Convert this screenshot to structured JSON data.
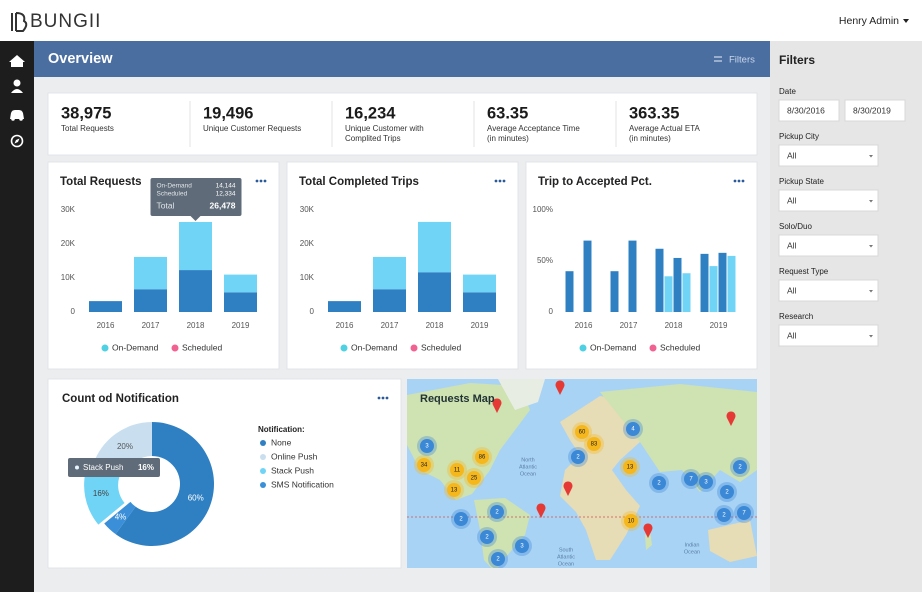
{
  "header": {
    "logo": "BUNGII",
    "user": "Henry Admin"
  },
  "banner": {
    "title": "Overview",
    "filters_button": "Filters"
  },
  "kpis": [
    {
      "value": "38,975",
      "label": [
        "Total Requests"
      ]
    },
    {
      "value": "19,496",
      "label": [
        "Unique Customer Requests"
      ]
    },
    {
      "value": "16,234",
      "label": [
        "Unique Customer with",
        "Complited Trips"
      ]
    },
    {
      "value": "63.35",
      "label": [
        "Average Acceptance Time",
        "(in minutes)"
      ]
    },
    {
      "value": "363.35",
      "label": [
        "Average Actual ETA",
        "(in minutes)"
      ]
    }
  ],
  "chart_data": [
    {
      "type": "bar",
      "stacked": true,
      "title": "Total Requests",
      "categories": [
        "2016",
        "2017",
        "2018",
        "2019"
      ],
      "series": [
        {
          "name": "On-Demand",
          "color": "#6fd4f6",
          "legend_color": "#4fd1e3",
          "values": [
            0,
            9500,
            14144,
            5200
          ]
        },
        {
          "name": "Scheduled",
          "color": "#2f80c3",
          "legend_color": "#f06292",
          "values": [
            3200,
            6700,
            12334,
            5800
          ]
        }
      ],
      "ylim": [
        0,
        30000
      ],
      "yticks": [
        0,
        {
          "value": 10000,
          "label": "10K"
        },
        {
          "value": 20000,
          "label": "20K"
        },
        {
          "value": 30000,
          "label": "30K"
        }
      ],
      "tooltip": {
        "rows": [
          {
            "label": "On-Demand",
            "value": "14,144"
          },
          {
            "label": "Scheduled",
            "value": "12,334"
          },
          {
            "label": "Total",
            "value": "26,478"
          }
        ]
      }
    },
    {
      "type": "bar",
      "stacked": true,
      "title": "Total Completed Trips",
      "categories": [
        "2016",
        "2017",
        "2018",
        "2019"
      ],
      "series": [
        {
          "name": "On-Demand",
          "color": "#6fd4f6",
          "legend_color": "#4fd1e3",
          "values": [
            0,
            9500,
            14800,
            5200
          ]
        },
        {
          "name": "Scheduled",
          "color": "#2f80c3",
          "legend_color": "#f06292",
          "values": [
            3200,
            6700,
            11700,
            5800
          ]
        }
      ],
      "ylim": [
        0,
        30000
      ],
      "yticks": [
        0,
        {
          "value": 10000,
          "label": "10K"
        },
        {
          "value": 20000,
          "label": "20K"
        },
        {
          "value": 30000,
          "label": "30K"
        }
      ]
    },
    {
      "type": "bar",
      "stacked": false,
      "title": "Trip to Accepted Pct.",
      "categories": [
        "2016",
        "2017",
        "2018",
        "2019"
      ],
      "series": [
        {
          "color": "#2f80c3",
          "values": [
            40,
            40,
            62,
            57
          ]
        },
        {
          "color": "#6fd4f6",
          "values": [
            null,
            null,
            35,
            45
          ]
        },
        {
          "color": "#2f80c3",
          "values": [
            70,
            70,
            53,
            58
          ]
        },
        {
          "color": "#6fd4f6",
          "values": [
            null,
            null,
            38,
            55
          ]
        }
      ],
      "legend": [
        {
          "name": "On-Demand",
          "color": "#4fd1e3"
        },
        {
          "name": "Scheduled",
          "color": "#f06292"
        }
      ],
      "ylim": [
        0,
        100
      ],
      "yticks": [
        0,
        {
          "value": 50,
          "label": "50%"
        },
        {
          "value": 100,
          "label": "100%"
        }
      ]
    },
    {
      "type": "pie",
      "donut": true,
      "title": "Count od Notification",
      "legend_title": "Notification:",
      "categories": [
        "None",
        "Online Push",
        "Stack Push",
        "SMS Notification"
      ],
      "values": [
        60,
        20,
        16,
        4
      ],
      "value_labels": [
        "60%",
        "20%",
        "16%",
        "4%"
      ],
      "colors": [
        "#2f80c3",
        "#c9dff0",
        "#6fd4f6",
        "#3b8fd8"
      ],
      "label_colors": [
        "#ffffff",
        "#555555",
        "#444444",
        "#ffffff"
      ],
      "exploded": "Stack Push",
      "tooltip": {
        "label": "Stack Push",
        "value": "16%"
      }
    }
  ],
  "map": {
    "title": "Requests Map",
    "clusters": [
      {
        "label": "3",
        "color": "#3b88d6"
      },
      {
        "label": "34",
        "color": "#f5b71c"
      },
      {
        "label": "11",
        "color": "#f5b71c"
      },
      {
        "label": "86",
        "color": "#f5b71c"
      },
      {
        "label": "25",
        "color": "#f5b71c"
      },
      {
        "label": "13",
        "color": "#f5b71c"
      },
      {
        "label": "60",
        "color": "#f5b71c"
      },
      {
        "label": "83",
        "color": "#f5b71c"
      },
      {
        "label": "2",
        "color": "#3b88d6"
      },
      {
        "label": "4",
        "color": "#3b88d6"
      },
      {
        "label": "13",
        "color": "#f5b71c"
      },
      {
        "label": "2",
        "color": "#3b88d6"
      },
      {
        "label": "7",
        "color": "#3b88d6"
      },
      {
        "label": "3",
        "color": "#3b88d6"
      },
      {
        "label": "2",
        "color": "#3b88d6"
      },
      {
        "label": "2",
        "color": "#3b88d6"
      },
      {
        "label": "10",
        "color": "#f5b71c"
      },
      {
        "label": "2",
        "color": "#3b88d6"
      },
      {
        "label": "7",
        "color": "#3b88d6"
      },
      {
        "label": "2",
        "color": "#3b88d6"
      },
      {
        "label": "2",
        "color": "#3b88d6"
      },
      {
        "label": "2",
        "color": "#3b88d6"
      },
      {
        "label": "3",
        "color": "#3b88d6"
      },
      {
        "label": "2",
        "color": "#3b88d6"
      }
    ],
    "labels": [
      [
        "North",
        "Atlantic",
        "Ocean"
      ],
      [
        "South",
        "Atlantic",
        "Ocean"
      ],
      [
        "Indian",
        "Ocean"
      ]
    ]
  },
  "filters": {
    "title": "Filters",
    "fields": [
      {
        "label": "Date",
        "values": [
          "8/30/2016",
          "8/30/2019"
        ]
      },
      {
        "label": "Pickup City",
        "values": [
          "All"
        ]
      },
      {
        "label": "Pickup State",
        "values": [
          "All"
        ]
      },
      {
        "label": "Solo/Duo",
        "values": [
          "All"
        ]
      },
      {
        "label": "Request Type",
        "values": [
          "All"
        ]
      },
      {
        "label": "Research",
        "values": [
          "All"
        ]
      }
    ]
  }
}
